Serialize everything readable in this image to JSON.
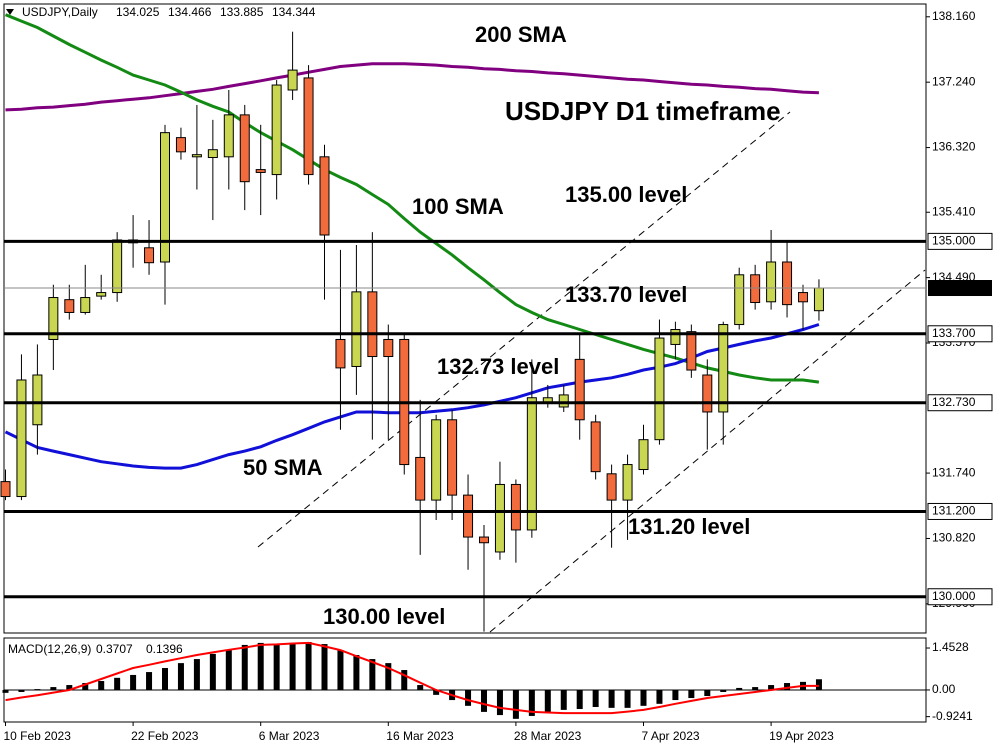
{
  "chart_data": [
    {
      "type": "candlestick",
      "title": "USDJPY D1 timeframe",
      "symbol": "USDJPY,Daily",
      "categories": [
        "10 Feb 2023",
        null,
        null,
        null,
        null,
        null,
        null,
        null,
        "22 Feb 2023",
        null,
        null,
        null,
        null,
        null,
        null,
        null,
        "6 Mar 2023",
        null,
        null,
        null,
        null,
        null,
        null,
        null,
        "16 Mar 2023",
        null,
        null,
        null,
        null,
        null,
        null,
        null,
        "28 Mar 2023",
        null,
        null,
        null,
        null,
        null,
        null,
        null,
        "7 Apr 2023",
        null,
        null,
        null,
        null,
        null,
        null,
        null,
        "19 Apr 2023",
        null,
        null,
        null
      ],
      "open": [
        131.62,
        131.41,
        132.42,
        133.62,
        134.18,
        134.0,
        134.23,
        134.28,
        134.98,
        134.91,
        134.71,
        136.46,
        136.19,
        136.18,
        136.19,
        136.78,
        136.01,
        135.94,
        137.13,
        137.3,
        136.19,
        133.62,
        133.24,
        134.29,
        133.62,
        133.62,
        131.96,
        131.36,
        132.49,
        131.43,
        130.84,
        130.63,
        131.58,
        130.94,
        132.74,
        132.67,
        133.34,
        132.46,
        131.73,
        131.36,
        131.79,
        132.21,
        133.55,
        133.73,
        133.12,
        132.6,
        133.83,
        134.53,
        134.15,
        134.71,
        134.28,
        134.025
      ],
      "high": [
        131.79,
        133.41,
        133.55,
        134.39,
        134.39,
        134.67,
        134.53,
        135.13,
        135.37,
        135.3,
        136.64,
        136.6,
        136.92,
        136.71,
        137.13,
        136.92,
        136.64,
        137.27,
        137.95,
        137.48,
        136.36,
        134.88,
        134.95,
        135.13,
        133.83,
        133.69,
        132.77,
        132.56,
        132.63,
        131.72,
        131.01,
        131.9,
        131.65,
        133.34,
        132.98,
        132.98,
        133.69,
        132.56,
        131.86,
        132.0,
        132.42,
        133.9,
        133.87,
        133.83,
        133.34,
        133.87,
        134.63,
        134.67,
        135.16,
        135.02,
        134.39,
        134.466
      ],
      "low": [
        131.36,
        131.36,
        132.0,
        133.19,
        133.9,
        133.97,
        134.18,
        134.15,
        134.63,
        134.53,
        134.11,
        136.15,
        135.73,
        135.3,
        135.73,
        135.44,
        135.37,
        135.59,
        136.99,
        135.8,
        134.18,
        132.35,
        132.84,
        132.21,
        132.21,
        131.72,
        130.59,
        131.08,
        131.08,
        130.38,
        129.51,
        130.52,
        130.48,
        130.83,
        132.66,
        132.6,
        132.21,
        131.65,
        130.69,
        130.8,
        131.72,
        132.14,
        133.34,
        133.08,
        132.07,
        132.14,
        133.76,
        134.04,
        134.04,
        133.93,
        133.76,
        133.885
      ],
      "close": [
        131.41,
        133.05,
        133.12,
        134.21,
        134.0,
        134.21,
        134.28,
        135.02,
        135.02,
        134.7,
        136.53,
        136.26,
        136.22,
        136.29,
        136.78,
        135.84,
        135.97,
        137.2,
        137.41,
        135.94,
        135.09,
        133.22,
        134.29,
        133.38,
        133.38,
        131.86,
        131.36,
        132.49,
        131.43,
        130.84,
        130.76,
        131.58,
        130.94,
        132.8,
        132.8,
        132.84,
        132.49,
        131.76,
        131.36,
        131.86,
        132.21,
        133.64,
        133.76,
        133.19,
        132.6,
        133.83,
        134.53,
        134.14,
        134.71,
        134.11,
        134.15,
        134.344
      ],
      "up_color": "#c8d651",
      "down_color": "#f26b3d",
      "series": [
        {
          "name": "200 SMA",
          "color": "#800080",
          "values": [
            136.85,
            136.86,
            136.88,
            136.89,
            136.91,
            136.93,
            136.96,
            136.98,
            137.0,
            137.02,
            137.05,
            137.08,
            137.11,
            137.14,
            137.18,
            137.22,
            137.26,
            137.3,
            137.34,
            137.38,
            137.42,
            137.46,
            137.48,
            137.5,
            137.5,
            137.5,
            137.49,
            137.48,
            137.46,
            137.45,
            137.43,
            137.42,
            137.4,
            137.39,
            137.37,
            137.36,
            137.34,
            137.32,
            137.3,
            137.28,
            137.27,
            137.25,
            137.23,
            137.21,
            137.2,
            137.18,
            137.17,
            137.15,
            137.14,
            137.12,
            137.1,
            137.09
          ]
        },
        {
          "name": "100 SMA",
          "color": "#138a13",
          "values": [
            138.19,
            138.1,
            138.01,
            137.89,
            137.77,
            137.66,
            137.55,
            137.45,
            137.34,
            137.27,
            137.2,
            137.1,
            136.99,
            136.9,
            136.82,
            136.67,
            136.53,
            136.41,
            136.29,
            136.15,
            136.01,
            135.9,
            135.8,
            135.66,
            135.52,
            135.32,
            135.13,
            134.97,
            134.81,
            134.63,
            134.46,
            134.28,
            134.11,
            134.0,
            133.9,
            133.83,
            133.76,
            133.69,
            133.62,
            133.55,
            133.48,
            133.42,
            133.36,
            133.29,
            133.22,
            133.17,
            133.12,
            133.08,
            133.05,
            133.05,
            133.05,
            133.02
          ]
        },
        {
          "name": "50 SMA",
          "color": "#1010d8",
          "values": [
            132.32,
            132.21,
            132.1,
            132.05,
            132.0,
            131.95,
            131.9,
            131.87,
            131.84,
            131.82,
            131.81,
            131.81,
            131.86,
            131.93,
            132.0,
            132.05,
            132.11,
            132.2,
            132.28,
            132.37,
            132.46,
            132.53,
            132.6,
            132.6,
            132.59,
            132.59,
            132.59,
            132.61,
            132.63,
            132.66,
            132.7,
            132.75,
            132.8,
            132.87,
            132.94,
            132.98,
            133.02,
            133.05,
            133.08,
            133.13,
            133.19,
            133.23,
            133.28,
            133.36,
            133.45,
            133.5,
            133.55,
            133.6,
            133.64,
            133.7,
            133.76,
            133.83
          ]
        }
      ],
      "levels": [
        {
          "value": 135,
          "label": "135.000"
        },
        {
          "value": 133.7,
          "label": "133.700"
        },
        {
          "value": 132.73,
          "label": "132.730"
        },
        {
          "value": 131.2,
          "label": "131.200"
        },
        {
          "value": 130,
          "label": "130.000"
        }
      ],
      "annotations": [
        "135.00 level",
        "133.70 level",
        "132.73 level",
        "131.20 level",
        "130.00 level"
      ],
      "ylim": [
        129.49,
        138.34
      ],
      "yticks": [
        {
          "value": 138.16,
          "label": "138.160"
        },
        {
          "value": 137.24,
          "label": "137.240"
        },
        {
          "value": 136.32,
          "label": "136.320"
        },
        {
          "value": 135.41,
          "label": "135.410"
        },
        {
          "value": 134.49,
          "label": "134.490"
        },
        {
          "value": 133.57,
          "label": "133.570"
        },
        {
          "value": 131.74,
          "label": "131.740"
        },
        {
          "value": 130.82,
          "label": "130.820"
        },
        {
          "value": 129.9,
          "label": "129.900"
        }
      ]
    },
    {
      "type": "macd",
      "title": "MACD(12,26,9)",
      "color": "#000000",
      "values": [
        -0.1,
        -0.07,
        0.03,
        0.1,
        0.17,
        0.24,
        0.31,
        0.42,
        0.52,
        0.62,
        0.76,
        0.93,
        1.07,
        1.25,
        1.38,
        1.56,
        1.63,
        1.59,
        1.63,
        1.66,
        1.59,
        1.38,
        1.21,
        1.07,
        0.93,
        0.69,
        0.17,
        -0.17,
        -0.35,
        -0.55,
        -0.76,
        -0.87,
        -1.0,
        -0.9,
        -0.8,
        -0.69,
        -0.66,
        -0.59,
        -0.62,
        -0.62,
        -0.55,
        -0.48,
        -0.35,
        -0.28,
        -0.21,
        -0.07,
        0.07,
        0.1,
        0.17,
        0.24,
        0.28,
        0.3707
      ],
      "signal": [
        -0.35,
        -0.26,
        -0.18,
        -0.09,
        0.0,
        0.19,
        0.38,
        0.57,
        0.76,
        0.87,
        0.99,
        1.1,
        1.21,
        1.3,
        1.39,
        1.47,
        1.56,
        1.58,
        1.61,
        1.63,
        1.51,
        1.38,
        1.17,
        0.97,
        0.76,
        0.51,
        0.25,
        0.0,
        -0.18,
        -0.35,
        -0.49,
        -0.62,
        -0.69,
        -0.76,
        -0.78,
        -0.8,
        -0.8,
        -0.8,
        -0.8,
        -0.75,
        -0.69,
        -0.59,
        -0.48,
        -0.38,
        -0.28,
        -0.21,
        -0.14,
        -0.07,
        0.0,
        0.07,
        0.14,
        0.1396
      ],
      "signal_color": "#ff0000",
      "ylim": [
        -1.11,
        1.8
      ],
      "yticks": [
        1.4528,
        {
          "value": 0,
          "label": "0.00"
        },
        -0.9241
      ]
    }
  ]
}
